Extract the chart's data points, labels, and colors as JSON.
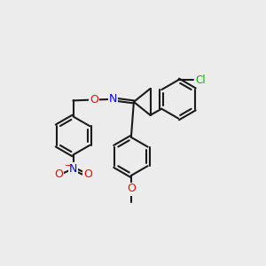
{
  "bg_color": "#ececec",
  "bond_color": "#1a1a1a",
  "N_color": "#0000ff",
  "O_color": "#ff0000",
  "Cl_color": "#00bb00",
  "bond_width": 1.5,
  "fig_size": [
    3.0,
    3.0
  ],
  "dpi": 100,
  "xlim": [
    0,
    10
  ],
  "ylim": [
    0,
    10
  ]
}
